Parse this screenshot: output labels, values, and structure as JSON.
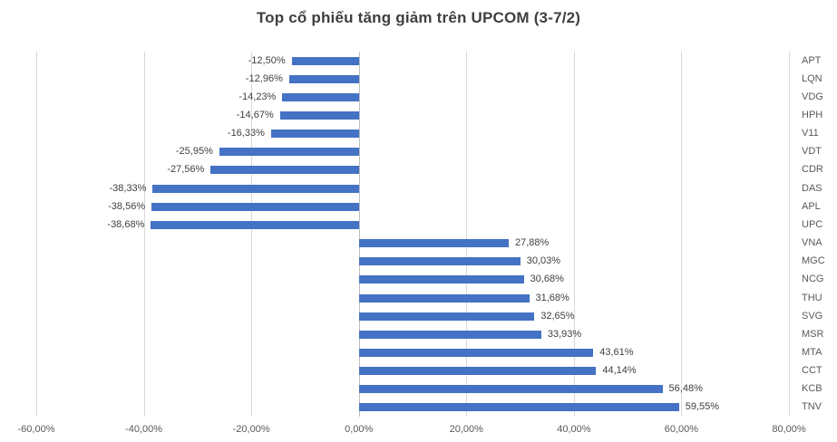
{
  "chart_data": {
    "type": "bar",
    "orientation": "horizontal",
    "title": "Top cổ phiếu tăng giảm trên UPCOM (3-7/2)",
    "categories": [
      "APT",
      "LQN",
      "VDG",
      "HPH",
      "V11",
      "VDT",
      "CDR",
      "DAS",
      "APL",
      "UPC",
      "VNA",
      "MGC",
      "NCG",
      "THU",
      "SVG",
      "MSR",
      "MTA",
      "CCT",
      "KCB",
      "TNV"
    ],
    "values": [
      -12.5,
      -12.96,
      -14.23,
      -14.67,
      -16.33,
      -25.95,
      -27.56,
      -38.33,
      -38.56,
      -38.68,
      27.88,
      30.03,
      30.68,
      31.68,
      32.65,
      33.93,
      43.61,
      44.14,
      56.48,
      59.55
    ],
    "value_labels": [
      "-12,50%",
      "-12,96%",
      "-14,23%",
      "-14,67%",
      "-16,33%",
      "-25,95%",
      "-27,56%",
      "-38,33%",
      "-38,56%",
      "-38,68%",
      "27,88%",
      "30,03%",
      "30,68%",
      "31,68%",
      "32,65%",
      "33,93%",
      "43,61%",
      "44,14%",
      "56,48%",
      "59,55%"
    ],
    "x_axis": {
      "min": -60,
      "max": 80,
      "step": 20,
      "tick_labels": [
        "-60,00%",
        "-40,00%",
        "-20,00%",
        "0,00%",
        "20,00%",
        "40,00%",
        "60,00%",
        "80,00%"
      ]
    },
    "legend": "none",
    "grid": true,
    "category_axis_position": "right",
    "colors": {
      "bar": "#4472C4",
      "gridline": "#D9D9D9",
      "axis_line": "#BFBFBF",
      "title_text": "#3F3F3F",
      "value_label_text": "#404040",
      "tick_text": "#595959",
      "category_text": "#595959",
      "background": "#FFFFFF"
    }
  }
}
